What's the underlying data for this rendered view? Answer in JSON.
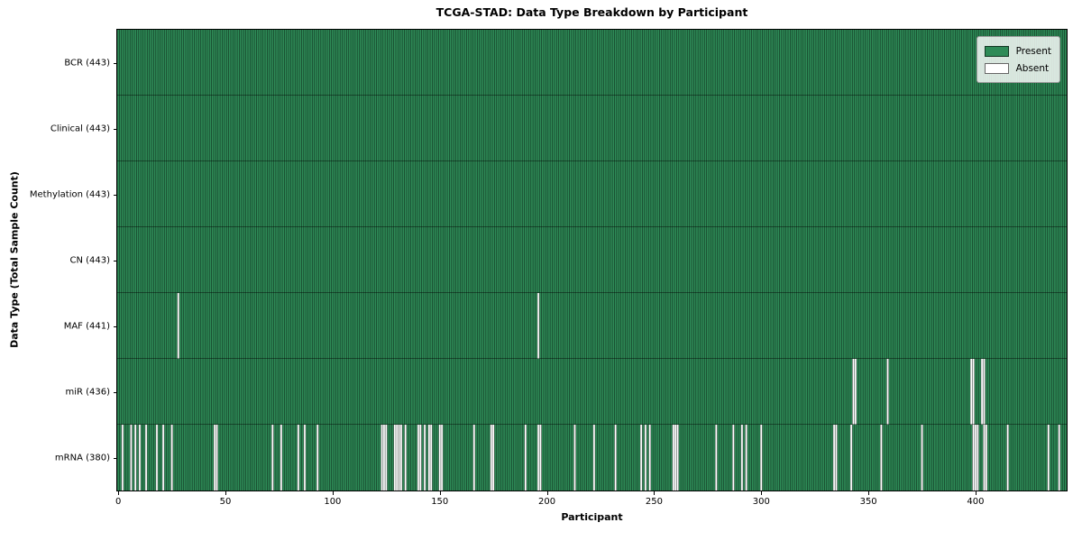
{
  "title": "TCGA-STAD: Data Type Breakdown by Participant",
  "axes": {
    "xlabel": "Participant",
    "ylabel": "Data Type (Total Sample Count)",
    "x_ticks": [
      0,
      50,
      100,
      150,
      200,
      250,
      300,
      350,
      400
    ]
  },
  "legend": {
    "present_label": "Present",
    "absent_label": "Absent",
    "position": "upper right"
  },
  "colors": {
    "present": "#2e8b57",
    "absent": "#ffffff",
    "bar_edge": "rgba(0,0,0,0.55)",
    "row_separator": "rgba(0,0,0,0.85)",
    "plot_border": "#000000",
    "figure_bg": "#ffffff"
  },
  "chart_data": {
    "type": "heatmap",
    "title": "TCGA-STAD: Data Type Breakdown by Participant",
    "xlabel": "Participant",
    "ylabel": "Data Type (Total Sample Count)",
    "n_participants": 443,
    "x_range": [
      0,
      443
    ],
    "x_tick_labels": [
      "0",
      "50",
      "100",
      "150",
      "200",
      "250",
      "300",
      "350",
      "400"
    ],
    "legend_entries": [
      "Present",
      "Absent"
    ],
    "legend_position": "upper right",
    "grid": false,
    "rows": [
      {
        "data_type": "BCR",
        "label": "BCR (443)",
        "present_count": 443,
        "absent_count": 0,
        "absent_participants": []
      },
      {
        "data_type": "Clinical",
        "label": "Clinical (443)",
        "present_count": 443,
        "absent_count": 0,
        "absent_participants": []
      },
      {
        "data_type": "Methylation",
        "label": "Methylation (443)",
        "present_count": 443,
        "absent_count": 0,
        "absent_participants": []
      },
      {
        "data_type": "CN",
        "label": "CN (443)",
        "present_count": 443,
        "absent_count": 0,
        "absent_participants": []
      },
      {
        "data_type": "MAF",
        "label": "MAF (441)",
        "present_count": 441,
        "absent_count": 2,
        "absent_participants": [
          28,
          196
        ]
      },
      {
        "data_type": "miR",
        "label": "miR (436)",
        "present_count": 436,
        "absent_count": 7,
        "absent_participants": [
          343,
          344,
          359,
          398,
          399,
          403,
          404
        ]
      },
      {
        "data_type": "mRNA",
        "label": "mRNA (380)",
        "present_count": 380,
        "absent_count": 63,
        "absent_participants": [
          2,
          6,
          8,
          10,
          13,
          18,
          21,
          25,
          45,
          46,
          72,
          76,
          84,
          87,
          93,
          123,
          124,
          125,
          129,
          130,
          131,
          132,
          134,
          140,
          141,
          143,
          145,
          146,
          150,
          151,
          166,
          174,
          175,
          190,
          196,
          197,
          213,
          222,
          232,
          244,
          246,
          248,
          259,
          260,
          261,
          279,
          287,
          291,
          293,
          300,
          334,
          335,
          342,
          356,
          375,
          399,
          400,
          401,
          404,
          405,
          415,
          434,
          439
        ]
      }
    ]
  }
}
